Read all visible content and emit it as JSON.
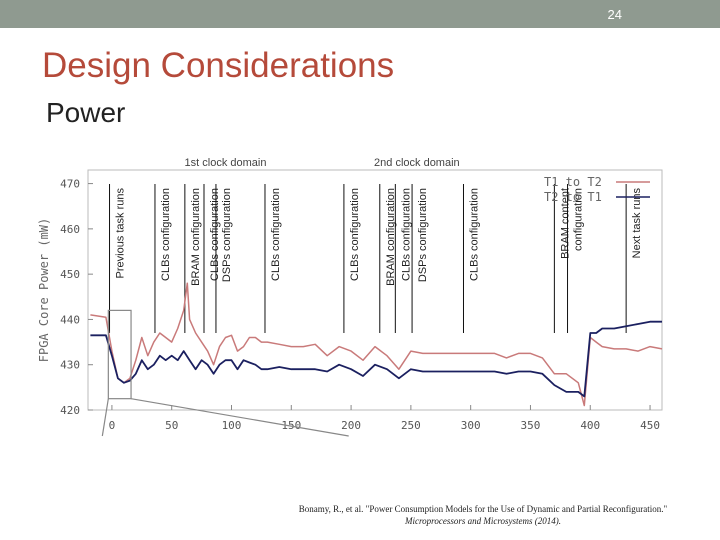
{
  "slide": {
    "number": "24"
  },
  "heading": {
    "title": "Design Considerations",
    "subtitle": "Power"
  },
  "chart_data": {
    "type": "line",
    "ylabel": "FPGA Core Power (mW)",
    "xlim": [
      -20,
      460
    ],
    "ylim": [
      420,
      473
    ],
    "xticks": [
      "0",
      "50",
      "100",
      "150",
      "200",
      "250",
      "300",
      "350",
      "400",
      "450"
    ],
    "yticks": [
      "470",
      "460",
      "450",
      "440",
      "430",
      "420"
    ],
    "domains": [
      {
        "label": "1st clock domain",
        "x": 95
      },
      {
        "label": "2nd clock domain",
        "x": 255
      }
    ],
    "events": [
      {
        "x": -2,
        "label": "Previous task runs"
      },
      {
        "x": 36,
        "label": "CLBs configuration"
      },
      {
        "x": 61,
        "label": "BRAM configuration"
      },
      {
        "x": 77,
        "label": "CLBs configuration"
      },
      {
        "x": 87,
        "label": "DSPs configuration"
      },
      {
        "x": 128,
        "label": "CLBs configuration"
      },
      {
        "x": 194,
        "label": "CLBs configuration"
      },
      {
        "x": 224,
        "label": "BRAM configuration"
      },
      {
        "x": 237,
        "label": "CLBs configuration"
      },
      {
        "x": 251,
        "label": "DSPs configuration"
      },
      {
        "x": 294,
        "label": "CLBs configuration"
      },
      {
        "x": 370,
        "label": "BRAM content"
      },
      {
        "x": 381,
        "label": "configuration"
      },
      {
        "x": 430,
        "label": "Next task runs"
      }
    ],
    "series": [
      {
        "name": "T1 to T2",
        "color": "#c97a7a",
        "x": [
          -18,
          -5,
          0,
          5,
          10,
          15,
          20,
          25,
          30,
          35,
          40,
          45,
          50,
          55,
          60,
          63,
          65,
          70,
          75,
          80,
          85,
          90,
          95,
          100,
          105,
          110,
          115,
          120,
          125,
          130,
          140,
          150,
          160,
          170,
          180,
          190,
          200,
          210,
          220,
          230,
          240,
          250,
          260,
          270,
          280,
          290,
          300,
          310,
          320,
          330,
          340,
          350,
          360,
          370,
          380,
          390,
          395,
          400,
          405,
          410,
          420,
          430,
          440,
          450,
          460
        ],
        "values": [
          441,
          440.5,
          433,
          427,
          426,
          427,
          431,
          436,
          432,
          435,
          437,
          436,
          435,
          438,
          442,
          448,
          440,
          437,
          435,
          433,
          430,
          434,
          436,
          436.5,
          433,
          434,
          436,
          436,
          435,
          435,
          434.5,
          434,
          434,
          434.5,
          432,
          434,
          433,
          431,
          434,
          432,
          429,
          433,
          432.5,
          432.5,
          432.5,
          432.5,
          432.5,
          432.5,
          432.5,
          431.5,
          432.5,
          432.5,
          431.5,
          428,
          428,
          426,
          421,
          436,
          435,
          434,
          433.5,
          433.5,
          433,
          434,
          433.5
        ]
      },
      {
        "name": "T2 to T1",
        "color": "#1b2060",
        "x": [
          -18,
          -5,
          0,
          5,
          10,
          15,
          20,
          25,
          30,
          35,
          40,
          45,
          50,
          55,
          60,
          65,
          70,
          75,
          80,
          85,
          90,
          95,
          100,
          105,
          110,
          115,
          120,
          125,
          130,
          140,
          150,
          160,
          170,
          180,
          190,
          200,
          210,
          220,
          230,
          240,
          250,
          260,
          270,
          280,
          290,
          300,
          310,
          320,
          330,
          340,
          350,
          360,
          370,
          380,
          390,
          395,
          400,
          405,
          410,
          420,
          430,
          440,
          450,
          460
        ],
        "values": [
          436.5,
          436.5,
          432,
          427,
          426,
          426.5,
          428,
          431,
          429,
          430,
          432,
          431,
          432,
          431,
          433,
          431,
          429,
          431,
          430,
          428,
          430,
          431,
          431,
          429,
          431,
          430.5,
          430,
          429,
          429,
          429.5,
          429,
          429,
          429,
          428.5,
          430,
          429,
          427.5,
          430,
          429,
          427,
          429,
          428.5,
          428.5,
          428.5,
          428.5,
          428.5,
          428.5,
          428.5,
          428,
          428.5,
          428.5,
          428,
          425.5,
          424,
          424,
          423,
          437,
          437,
          438,
          438,
          438.5,
          439,
          439.5,
          439.5
        ]
      }
    ],
    "legend": [
      "T1 to T2",
      "T2 to T1"
    ],
    "legend_position": "top-right"
  },
  "citation": {
    "line1": "Bonamy, R., et al. \"Power Consumption Models for the Use of Dynamic and Partial Reconfiguration.\"",
    "line2": "Microprocessors and Microsystems (2014)."
  }
}
